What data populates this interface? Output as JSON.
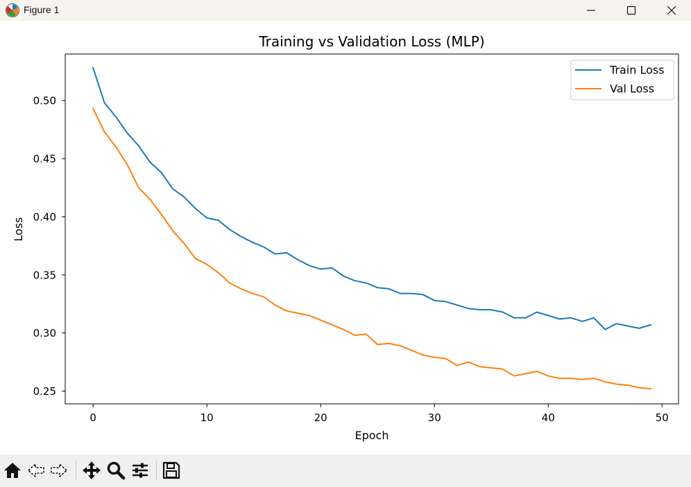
{
  "window": {
    "title": "Figure 1",
    "icon": "matplotlib-logo-icon",
    "controls": [
      "minimize-icon",
      "maximize-icon",
      "close-icon"
    ]
  },
  "toolbar": {
    "tools": [
      "home-icon",
      "back-arrow-icon",
      "forward-arrow-icon",
      "pan-move-icon",
      "zoom-magnifier-icon",
      "configure-subplots-icon",
      "save-floppy-icon"
    ]
  },
  "chart_data": {
    "type": "line",
    "title": "Training vs Validation Loss (MLP)",
    "xlabel": "Epoch",
    "ylabel": "Loss",
    "xlim": [
      -2.45,
      51.45
    ],
    "ylim": [
      0.239,
      0.54
    ],
    "xticks": [
      0,
      10,
      20,
      30,
      40,
      50
    ],
    "xtick_labels": [
      "0",
      "10",
      "20",
      "30",
      "40",
      "50"
    ],
    "yticks": [
      0.25,
      0.3,
      0.35,
      0.4,
      0.45,
      0.5
    ],
    "ytick_labels": [
      "0.25",
      "0.30",
      "0.35",
      "0.40",
      "0.45",
      "0.50"
    ],
    "grid": false,
    "legend": "top-right",
    "x": [
      0,
      1,
      2,
      3,
      4,
      5,
      6,
      7,
      8,
      9,
      10,
      11,
      12,
      13,
      14,
      15,
      16,
      17,
      18,
      19,
      20,
      21,
      22,
      23,
      24,
      25,
      26,
      27,
      28,
      29,
      30,
      31,
      32,
      33,
      34,
      35,
      36,
      37,
      38,
      39,
      40,
      41,
      42,
      43,
      44,
      45,
      46,
      47,
      48,
      49
    ],
    "series": [
      {
        "name": "Train Loss",
        "color": "#1f77b4",
        "values": [
          0.528,
          0.498,
          0.486,
          0.472,
          0.461,
          0.447,
          0.438,
          0.424,
          0.417,
          0.407,
          0.399,
          0.397,
          0.389,
          0.383,
          0.378,
          0.374,
          0.368,
          0.369,
          0.363,
          0.358,
          0.355,
          0.356,
          0.349,
          0.345,
          0.343,
          0.339,
          0.338,
          0.334,
          0.334,
          0.333,
          0.328,
          0.327,
          0.324,
          0.321,
          0.32,
          0.32,
          0.318,
          0.313,
          0.313,
          0.318,
          0.315,
          0.312,
          0.313,
          0.31,
          0.313,
          0.303,
          0.308,
          0.306,
          0.304,
          0.307
        ]
      },
      {
        "name": "Val Loss",
        "color": "#ff7f0e",
        "values": [
          0.493,
          0.473,
          0.46,
          0.445,
          0.425,
          0.415,
          0.402,
          0.388,
          0.377,
          0.364,
          0.359,
          0.352,
          0.343,
          0.338,
          0.334,
          0.331,
          0.324,
          0.319,
          0.317,
          0.315,
          0.311,
          0.307,
          0.303,
          0.298,
          0.299,
          0.29,
          0.291,
          0.289,
          0.285,
          0.281,
          0.279,
          0.278,
          0.272,
          0.275,
          0.271,
          0.27,
          0.269,
          0.263,
          0.265,
          0.267,
          0.263,
          0.261,
          0.261,
          0.26,
          0.261,
          0.258,
          0.256,
          0.255,
          0.253,
          0.252
        ]
      }
    ]
  }
}
